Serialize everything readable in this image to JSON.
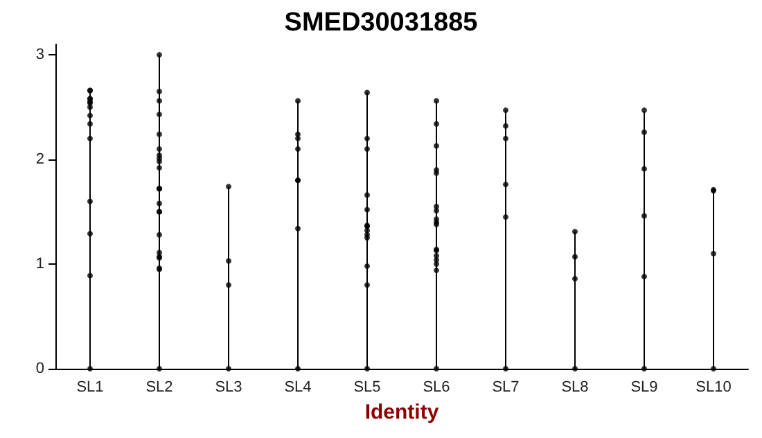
{
  "chart_data": {
    "type": "bar",
    "title": "SMED30031885",
    "xlabel": "Identity",
    "categories": [
      "SL1",
      "SL2",
      "SL3",
      "SL4",
      "SL5",
      "SL6",
      "SL7",
      "SL8",
      "SL9",
      "SL10"
    ],
    "ylim": [
      0,
      3.1
    ],
    "yticks": [
      0,
      1,
      2,
      3
    ],
    "marker": "circle",
    "series": [
      {
        "color": "#000000",
        "values": [
          2.66,
          3.0,
          1.74,
          2.56,
          2.64,
          2.56,
          2.47,
          1.31,
          2.46,
          1.71
        ]
      },
      {
        "type": "scatter",
        "color": "#000000",
        "x": [
          "SL1",
          "SL1",
          "SL1",
          "SL1",
          "SL1",
          "SL1",
          "SL1",
          "SL1",
          "SL1",
          "SL1",
          "SL1",
          "SL1",
          "SL1",
          "SL1",
          "SL2",
          "SL2",
          "SL2",
          "SL2",
          "SL2",
          "SL2",
          "SL2",
          "SL2",
          "SL2",
          "SL2",
          "SL2",
          "SL2",
          "SL2",
          "SL2",
          "SL2",
          "SL2",
          "SL2",
          "SL2",
          "SL2",
          "SL2",
          "SL2",
          "SL2",
          "SL2",
          "SL3",
          "SL3",
          "SL3",
          "SL3",
          "SL4",
          "SL4",
          "SL4",
          "SL4",
          "SL4",
          "SL4",
          "SL4",
          "SL4",
          "SL5",
          "SL5",
          "SL5",
          "SL5",
          "SL5",
          "SL5",
          "SL5",
          "SL5",
          "SL5",
          "SL5",
          "SL5",
          "SL5",
          "SL5",
          "SL6",
          "SL6",
          "SL6",
          "SL6",
          "SL6",
          "SL6",
          "SL6",
          "SL6",
          "SL6",
          "SL6",
          "SL6",
          "SL6",
          "SL6",
          "SL6",
          "SL6",
          "SL6",
          "SL6",
          "SL7",
          "SL7",
          "SL7",
          "SL7",
          "SL7",
          "SL7",
          "SL8",
          "SL8",
          "SL8",
          "SL8",
          "SL9",
          "SL9",
          "SL9",
          "SL9",
          "SL9",
          "SL9",
          "SL10",
          "SL10",
          "SL10",
          "SL10"
        ],
        "values": [
          2.58,
          2.5,
          2.66,
          2.55,
          2.54,
          2.66,
          2.42,
          2.34,
          2.2,
          2.58,
          1.6,
          1.29,
          0.89,
          0,
          3.0,
          2.65,
          2.56,
          2.43,
          2.24,
          2.1,
          2.04,
          2.01,
          1.98,
          1.92,
          1.72,
          1.72,
          1.72,
          1.58,
          1.5,
          1.5,
          1.28,
          1.11,
          1.06,
          1.07,
          0.95,
          0.96,
          0,
          1.74,
          1.03,
          0.8,
          0,
          2.56,
          2.24,
          2.2,
          2.1,
          1.8,
          1.8,
          1.34,
          0,
          2.64,
          2.2,
          2.1,
          1.66,
          1.52,
          1.37,
          1.36,
          1.32,
          1.28,
          1.25,
          0.98,
          0.8,
          0,
          2.56,
          2.34,
          2.13,
          1.9,
          1.87,
          1.55,
          1.51,
          1.43,
          1.4,
          1.38,
          1.14,
          1.13,
          1.08,
          1.04,
          1.0,
          0.94,
          0,
          2.47,
          2.32,
          2.2,
          1.76,
          1.45,
          0,
          1.31,
          1.07,
          0.86,
          0,
          2.47,
          2.26,
          1.91,
          1.46,
          0.88,
          0,
          1.71,
          1.7,
          1.1,
          0
        ]
      }
    ]
  }
}
